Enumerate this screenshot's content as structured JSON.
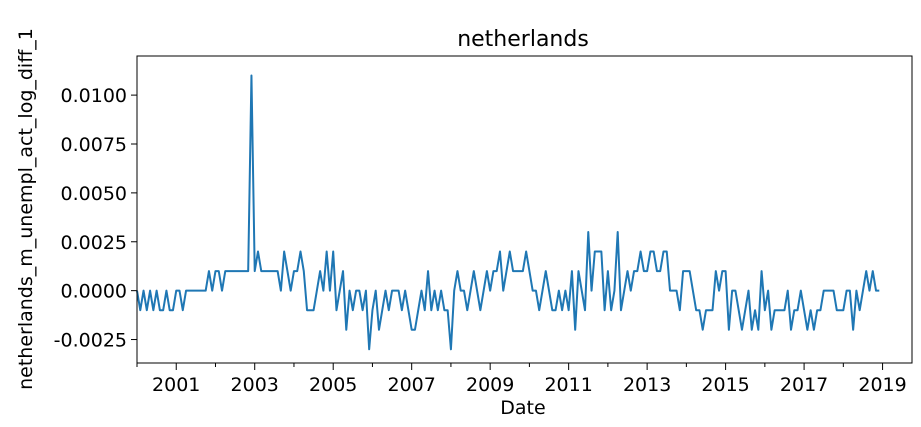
{
  "chart_data": {
    "type": "line",
    "title": "netherlands",
    "xlabel": "Date",
    "ylabel": "netherlands_m_unempl_act_log_diff_1",
    "x_major_ticks": [
      "2001",
      "2003",
      "2005",
      "2007",
      "2009",
      "2011",
      "2013",
      "2015",
      "2017",
      "2019"
    ],
    "x_minor_ticks": [
      "2000",
      "2002",
      "2004",
      "2006",
      "2008",
      "2010",
      "2012",
      "2014",
      "2016",
      "2018"
    ],
    "y_ticks": [
      "-0.0025",
      "0.0000",
      "0.0025",
      "0.0050",
      "0.0075",
      "0.0100"
    ],
    "xlim": [
      "2000-01",
      "2019-10"
    ],
    "ylim": [
      -0.0037,
      0.012
    ],
    "grid": false,
    "color": "#1f77b4",
    "series": [
      {
        "start": "2000-01",
        "frequency": "monthly",
        "values": [
          0,
          -0.001,
          0,
          -0.001,
          0,
          -0.001,
          0,
          -0.001,
          -0.001,
          0,
          -0.001,
          -0.001,
          0,
          0,
          -0.001,
          0,
          0,
          0,
          0,
          0,
          0,
          0,
          0.001,
          0,
          0.001,
          0.001,
          0,
          0.001,
          0.001,
          0.001,
          0.001,
          0.001,
          0.001,
          0.001,
          0.001,
          0.011,
          0.001,
          0.002,
          0.001,
          0.001,
          0.001,
          0.001,
          0.001,
          0.001,
          0,
          0.002,
          0.001,
          0,
          0.001,
          0.001,
          0.002,
          0.001,
          -0.001,
          -0.001,
          -0.001,
          0,
          0.001,
          0,
          0.002,
          0,
          0.002,
          -0.001,
          0,
          0.001,
          -0.002,
          0,
          -0.001,
          0,
          0,
          -0.001,
          0,
          -0.003,
          -0.001,
          0,
          -0.002,
          -0.001,
          0,
          -0.001,
          0,
          0,
          0,
          -0.001,
          0,
          -0.001,
          -0.002,
          -0.002,
          -0.001,
          0,
          -0.001,
          0.001,
          -0.001,
          0,
          -0.001,
          0,
          -0.001,
          -0.001,
          -0.003,
          0,
          0.001,
          0,
          0,
          -0.001,
          0,
          0.001,
          0,
          -0.001,
          0,
          0.001,
          0,
          0.001,
          0.001,
          0.002,
          0,
          0.001,
          0.002,
          0.001,
          0.001,
          0.001,
          0.001,
          0.002,
          0.001,
          0,
          0,
          -0.001,
          0,
          0.001,
          0,
          -0.001,
          -0.001,
          0,
          -0.001,
          0,
          -0.001,
          0.001,
          -0.002,
          0.001,
          0,
          -0.001,
          0.003,
          0,
          0.002,
          0.002,
          0.002,
          -0.001,
          0.001,
          -0.001,
          0,
          0.003,
          -0.001,
          0,
          0.001,
          0,
          0.001,
          0.001,
          0.002,
          0.001,
          0.001,
          0.002,
          0.002,
          0.001,
          0.001,
          0.002,
          0.002,
          0,
          0,
          0,
          -0.001,
          0.001,
          0.001,
          0.001,
          0,
          -0.001,
          -0.001,
          -0.002,
          -0.001,
          -0.001,
          -0.001,
          0.001,
          0,
          0.001,
          0.001,
          -0.002,
          0,
          0,
          -0.001,
          -0.002,
          -0.001,
          0,
          -0.002,
          -0.001,
          -0.002,
          0.001,
          -0.001,
          0,
          -0.002,
          -0.001,
          -0.001,
          -0.001,
          -0.001,
          0,
          -0.002,
          -0.001,
          -0.001,
          0,
          -0.001,
          -0.002,
          -0.001,
          -0.002,
          -0.001,
          -0.001,
          0,
          0,
          0,
          0,
          -0.001,
          -0.001,
          -0.001,
          0,
          0,
          -0.002,
          0,
          -0.001,
          0,
          0.001,
          0,
          0.001,
          0,
          0
        ]
      }
    ]
  }
}
